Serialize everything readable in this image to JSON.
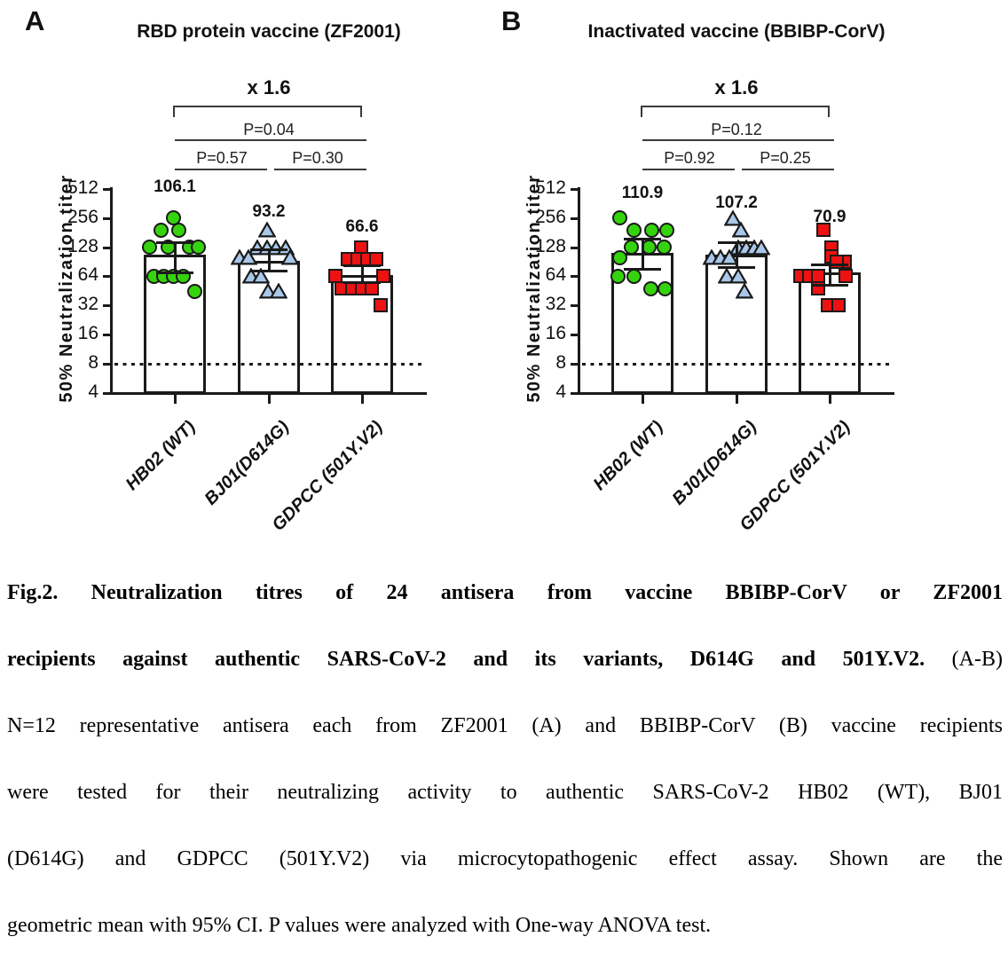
{
  "figure": {
    "panels": [
      {
        "panel_label": "A",
        "title": "RBD protein vaccine (ZF2001)",
        "fold_change": "x 1.6",
        "p_values": {
          "overall": "P=0.04",
          "left": "P=0.57",
          "right": "P=0.30"
        },
        "means": [
          "106.1",
          "93.2",
          "66.6"
        ]
      },
      {
        "panel_label": "B",
        "title": "Inactivated vaccine (BBIBP-CorV)",
        "fold_change": "x 1.6",
        "p_values": {
          "overall": "P=0.12",
          "left": "P=0.92",
          "right": "P=0.25"
        },
        "means": [
          "110.9",
          "107.2",
          "70.9"
        ]
      }
    ],
    "y_axis": {
      "label": "50% Neutralization titer",
      "ticks": [
        "512",
        "256",
        "128",
        "64",
        "32",
        "16",
        "8",
        "4"
      ]
    },
    "x_categories": [
      "HB02 (WT)",
      "BJ01(D614G)",
      "GDPCC (501Y.V2)"
    ]
  },
  "chart_data": [
    {
      "type": "bar",
      "title": "RBD protein vaccine (ZF2001)",
      "categories": [
        "HB02 (WT)",
        "BJ01(D614G)",
        "GDPCC (501Y.V2)"
      ],
      "values": [
        106.1,
        93.2,
        66.6
      ],
      "value_meaning": "geometric mean 50% neutralization titer",
      "ci_low": [
        69,
        72,
        55
      ],
      "ci_high": [
        142,
        120,
        83
      ],
      "points": [
        [
          256,
          192,
          192,
          128,
          128,
          128,
          128,
          64,
          64,
          64,
          64,
          45
        ],
        [
          192,
          128,
          128,
          128,
          128,
          100,
          100,
          100,
          64,
          64,
          45,
          45
        ],
        [
          128,
          96,
          96,
          96,
          96,
          64,
          64,
          48,
          48,
          48,
          48,
          32
        ]
      ],
      "marker_offsets": [
        [
          -2,
          -16,
          4,
          -29,
          -8,
          16,
          26,
          -24,
          -13,
          -2,
          9,
          22
        ],
        [
          -2,
          -13,
          -2,
          8,
          19,
          -33,
          -23,
          24,
          -20,
          -9,
          -1,
          11
        ],
        [
          -1,
          -16,
          -5,
          6,
          16,
          -30,
          24,
          -23,
          -11,
          0,
          11,
          21
        ]
      ],
      "n_per_group": 12,
      "ylabel": "50% Neutralization titer",
      "yscale": "log2",
      "ylim": [
        4,
        512
      ],
      "yticks": [
        512,
        256,
        128,
        64,
        32,
        16,
        8,
        4
      ],
      "dotted_threshold_line": 8,
      "annotations": {
        "fold_change": "x 1.6",
        "p_group1_vs_group3": "P=0.04",
        "p_group1_vs_group2": "P=0.57",
        "p_group2_vs_group3": "P=0.30"
      }
    },
    {
      "type": "bar",
      "title": "Inactivated vaccine (BBIBP-CorV)",
      "categories": [
        "HB02 (WT)",
        "BJ01(D614G)",
        "GDPCC (501Y.V2)"
      ],
      "values": [
        110.9,
        107.2,
        70.9
      ],
      "value_meaning": "geometric mean 50% neutralization titer",
      "ci_low": [
        76,
        79,
        52
      ],
      "ci_high": [
        154,
        142,
        84
      ],
      "points": [
        [
          256,
          192,
          192,
          192,
          128,
          128,
          128,
          100,
          64,
          64,
          48,
          48
        ],
        [
          256,
          192,
          128,
          128,
          128,
          128,
          100,
          100,
          100,
          64,
          64,
          45
        ],
        [
          192,
          128,
          102,
          90,
          90,
          64,
          64,
          64,
          64,
          48,
          32,
          32
        ]
      ],
      "marker_offsets": [
        [
          -26,
          -10,
          10,
          27,
          -13,
          7,
          24,
          -26,
          -28,
          -10,
          9,
          25
        ],
        [
          -4,
          5,
          2,
          11,
          20,
          28,
          -28,
          -18,
          -8,
          -11,
          2,
          9
        ],
        [
          -7,
          2,
          2,
          17,
          8,
          -33,
          -23,
          -13,
          18,
          -13,
          -2,
          10
        ]
      ],
      "n_per_group": 12,
      "ylabel": "50% Neutralization titer",
      "yscale": "log2",
      "ylim": [
        4,
        512
      ],
      "yticks": [
        512,
        256,
        128,
        64,
        32,
        16,
        8,
        4
      ],
      "dotted_threshold_line": 8,
      "annotations": {
        "fold_change": "x 1.6",
        "p_group1_vs_group3": "P=0.12",
        "p_group1_vs_group2": "P=0.92",
        "p_group2_vs_group3": "P=0.25"
      }
    }
  ],
  "colors": {
    "hb02_marker": "#35d30d",
    "bj01_marker": "#a9c7e9",
    "gdpcc_marker": "#ee1111",
    "marker_outline": "#1a1a1a",
    "axis": "#1a1a1a"
  },
  "caption": {
    "line1_bold": "Fig.2. Neutralization titres of 24 antisera from vaccine BBIBP-CorV or ZF2001",
    "line2_bold": "recipients against authentic SARS-CoV-2 and its variants, D614G and 501Y.V2.",
    "line2_rest": " (A-B)",
    "line3": "N=12 representative antisera each from ZF2001 (A) and BBIBP-CorV (B) vaccine recipients",
    "line4": "were tested for their neutralizing activity to authentic SARS-CoV-2 HB02 (WT), BJ01",
    "line5": "(D614G) and GDPCC (501Y.V2) via microcytopathogenic effect assay. Shown are the",
    "line6": "geometric mean with 95% CI. P values were analyzed with One-way ANOVA test."
  }
}
